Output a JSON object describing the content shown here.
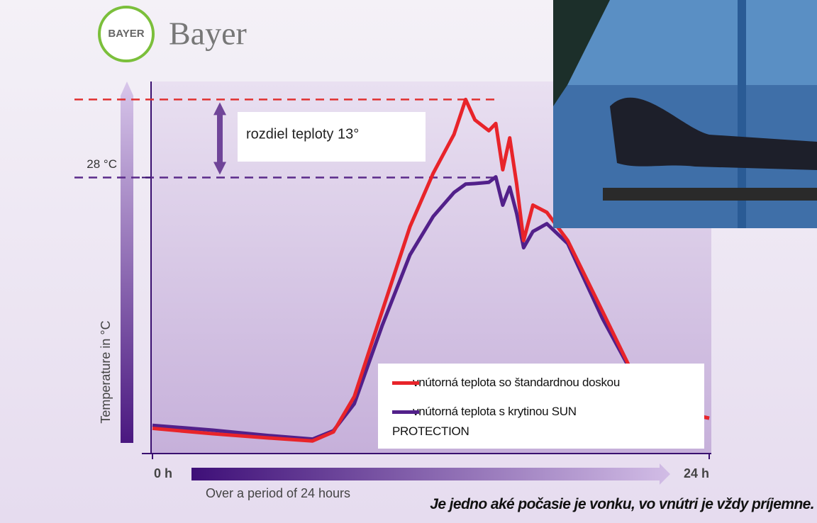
{
  "logo_text": "BAYER",
  "brand": "Bayer",
  "caption": "Je jedno aké počasie je vonku, vo vnútri je vždy príjemne.",
  "chart_data": {
    "type": "line",
    "ylabel": "Temperature in °C",
    "xlabel": "Over a period of 24 hours",
    "annotation": "rozdiel teploty 13°",
    "xlim": [
      0,
      24
    ],
    "xticks": [
      {
        "value": 0,
        "label": "0 h"
      },
      {
        "value": 24,
        "label": "24 h"
      }
    ],
    "ylim": [
      -18,
      44
    ],
    "yticks": [
      {
        "value": 28,
        "label": "28 °C"
      }
    ],
    "hlines": [
      {
        "value": 41,
        "color": "#e03030"
      },
      {
        "value": 28,
        "color": "#5a2a8a"
      }
    ],
    "x": [
      0,
      2.6,
      5,
      6.9,
      7.8,
      8.7,
      9.9,
      11.1,
      12.1,
      13,
      13.5,
      13.9,
      14.5,
      14.8,
      15.1,
      15.4,
      15.7,
      16,
      16.4,
      17,
      17.9,
      19.4,
      20.9,
      22.5,
      24
    ],
    "series": [
      {
        "name": "vnútorná teplota so štandardnou doskou",
        "color": "#e8242a",
        "values": [
          -13.8,
          -14.7,
          -15.4,
          -15.9,
          -14.4,
          -8.5,
          5.7,
          19.8,
          28.7,
          35.2,
          41,
          37.6,
          35.8,
          37,
          29.3,
          34.6,
          26.9,
          17.5,
          23.4,
          22.2,
          17.5,
          5.7,
          -6.2,
          -10.9,
          -12.1
        ]
      },
      {
        "name": "vnútorná teplota s krytinou SUN PROTECTION",
        "color": "#52208a",
        "values": [
          -13.3,
          -14.1,
          -15,
          -15.6,
          -14.2,
          -9.7,
          3.3,
          15.1,
          21.5,
          25.5,
          26.9,
          27,
          27.2,
          28.1,
          23.4,
          26.4,
          22,
          16.3,
          19,
          20.3,
          17,
          4.5,
          -6.2,
          -10.9,
          -12.1
        ]
      }
    ]
  }
}
